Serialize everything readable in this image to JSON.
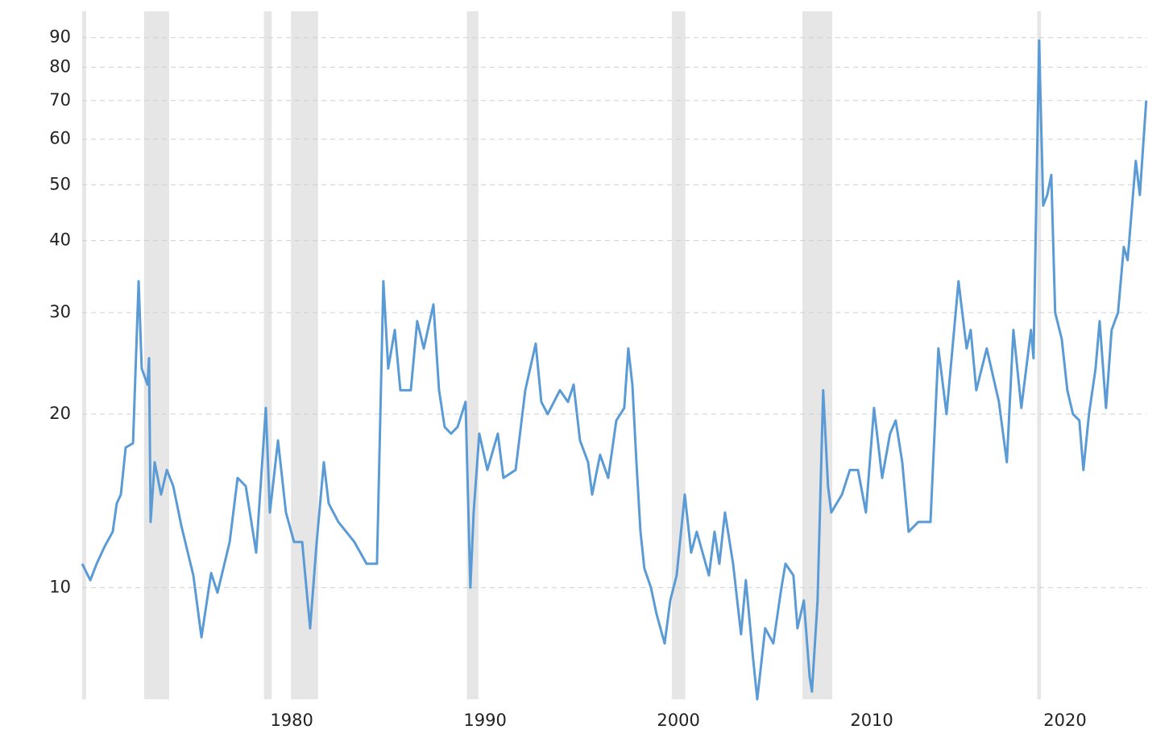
{
  "chart_data": {
    "type": "line",
    "log_scale": true,
    "grid": true,
    "color": "#5b9bd5",
    "band_color": "#e6e6e6",
    "xlim": [
      1970.7,
      2025.75
    ],
    "xticks": [
      1980,
      1990,
      2000,
      2010,
      2020
    ],
    "ylim": [
      6.4,
      100
    ],
    "yticks": [
      10,
      20,
      30,
      40,
      50,
      60,
      70,
      80,
      90
    ],
    "recession_bands": [
      [
        1970.7,
        1970.9
      ],
      [
        1973.9,
        1975.2
      ],
      [
        1980.1,
        1980.5
      ],
      [
        1981.5,
        1982.9
      ],
      [
        1990.6,
        1991.2
      ],
      [
        2001.2,
        2001.9
      ],
      [
        2007.95,
        2009.5
      ],
      [
        2020.1,
        2020.3
      ]
    ],
    "x": [
      1970.7,
      1971.12,
      1971.45,
      1971.87,
      1972.28,
      1972.49,
      1972.7,
      1972.95,
      1973.33,
      1973.62,
      1973.78,
      1974.08,
      1974.16,
      1974.24,
      1974.45,
      1974.78,
      1975.08,
      1975.41,
      1975.83,
      1976.45,
      1976.87,
      1977.37,
      1977.7,
      1978.33,
      1978.74,
      1979.16,
      1979.7,
      1980.2,
      1980.41,
      1980.83,
      1981.24,
      1981.66,
      1982.08,
      1982.49,
      1982.83,
      1983.2,
      1983.45,
      1983.95,
      1984.78,
      1985.41,
      1985.95,
      1986.28,
      1986.53,
      1986.87,
      1987.16,
      1987.7,
      1988.03,
      1988.37,
      1988.87,
      1989.16,
      1989.45,
      1989.78,
      1990.12,
      1990.53,
      1990.78,
      1990.95,
      1991.24,
      1991.66,
      1992.2,
      1992.49,
      1993.12,
      1993.62,
      1994.16,
      1994.45,
      1994.78,
      1995.41,
      1995.83,
      1996.12,
      1996.45,
      1996.87,
      1997.08,
      1997.49,
      1997.91,
      1998.33,
      1998.74,
      1998.95,
      1999.16,
      1999.37,
      1999.58,
      1999.78,
      2000.12,
      2000.41,
      2000.83,
      2001.12,
      2001.45,
      2001.87,
      2002.2,
      2002.49,
      2003.12,
      2003.41,
      2003.66,
      2003.95,
      2004.37,
      2004.78,
      2005.03,
      2005.41,
      2005.62,
      2006.03,
      2006.45,
      2006.87,
      2007.08,
      2007.49,
      2007.7,
      2008.03,
      2008.33,
      2008.45,
      2008.74,
      2009.03,
      2009.28,
      2009.45,
      2010.0,
      2010.41,
      2010.83,
      2011.24,
      2011.66,
      2012.08,
      2012.49,
      2012.78,
      2013.12,
      2013.45,
      2013.95,
      2014.58,
      2014.99,
      2015.41,
      2016.03,
      2016.45,
      2016.66,
      2016.95,
      2017.49,
      2018.12,
      2018.53,
      2018.87,
      2019.28,
      2019.78,
      2019.91,
      2020.2,
      2020.41,
      2020.62,
      2020.83,
      2021.03,
      2021.37,
      2021.66,
      2021.95,
      2022.28,
      2022.49,
      2022.78,
      2023.12,
      2023.33,
      2023.66,
      2023.95,
      2024.28,
      2024.58,
      2024.78,
      2025.2,
      2025.41,
      2025.74
    ],
    "values": [
      11,
      10.3,
      11,
      11.8,
      12.5,
      14,
      14.5,
      17.5,
      17.8,
      34,
      24,
      22.5,
      25,
      13,
      16.5,
      14.5,
      16,
      15,
      12.8,
      10.5,
      8.2,
      10.6,
      9.8,
      12,
      15.5,
      15,
      11.5,
      20.5,
      13.5,
      18,
      13.5,
      12,
      12,
      8.5,
      12,
      16.5,
      14,
      13,
      12,
      11,
      11,
      34,
      24,
      28,
      22,
      22,
      29,
      26,
      31,
      22,
      19,
      18.5,
      19,
      21,
      10,
      13.5,
      18.5,
      16,
      18.5,
      15.5,
      16,
      22,
      26.5,
      21,
      20,
      22,
      21,
      22.5,
      18,
      16.5,
      14.5,
      17,
      15.5,
      19.5,
      20.5,
      26,
      22.5,
      16.5,
      12.5,
      10.8,
      10,
      9,
      8,
      9.5,
      10.5,
      14.5,
      11.5,
      12.5,
      10.5,
      12.5,
      11,
      13.5,
      11,
      8.3,
      10.3,
      7.5,
      6.4,
      8.5,
      8,
      10,
      11,
      10.5,
      8.5,
      9.5,
      7,
      6.6,
      9.5,
      22,
      15,
      13.5,
      14.5,
      16,
      16,
      13.5,
      20.5,
      15.5,
      18.5,
      19.5,
      16.5,
      12.5,
      13,
      13,
      26,
      20,
      34,
      26,
      28,
      22,
      26,
      21,
      16.5,
      28,
      20.5,
      28,
      25,
      89,
      46,
      48,
      52,
      30,
      27,
      22,
      20,
      19.5,
      16,
      20,
      24,
      29,
      20.5,
      28,
      30,
      39,
      37,
      55,
      48,
      70
    ]
  }
}
